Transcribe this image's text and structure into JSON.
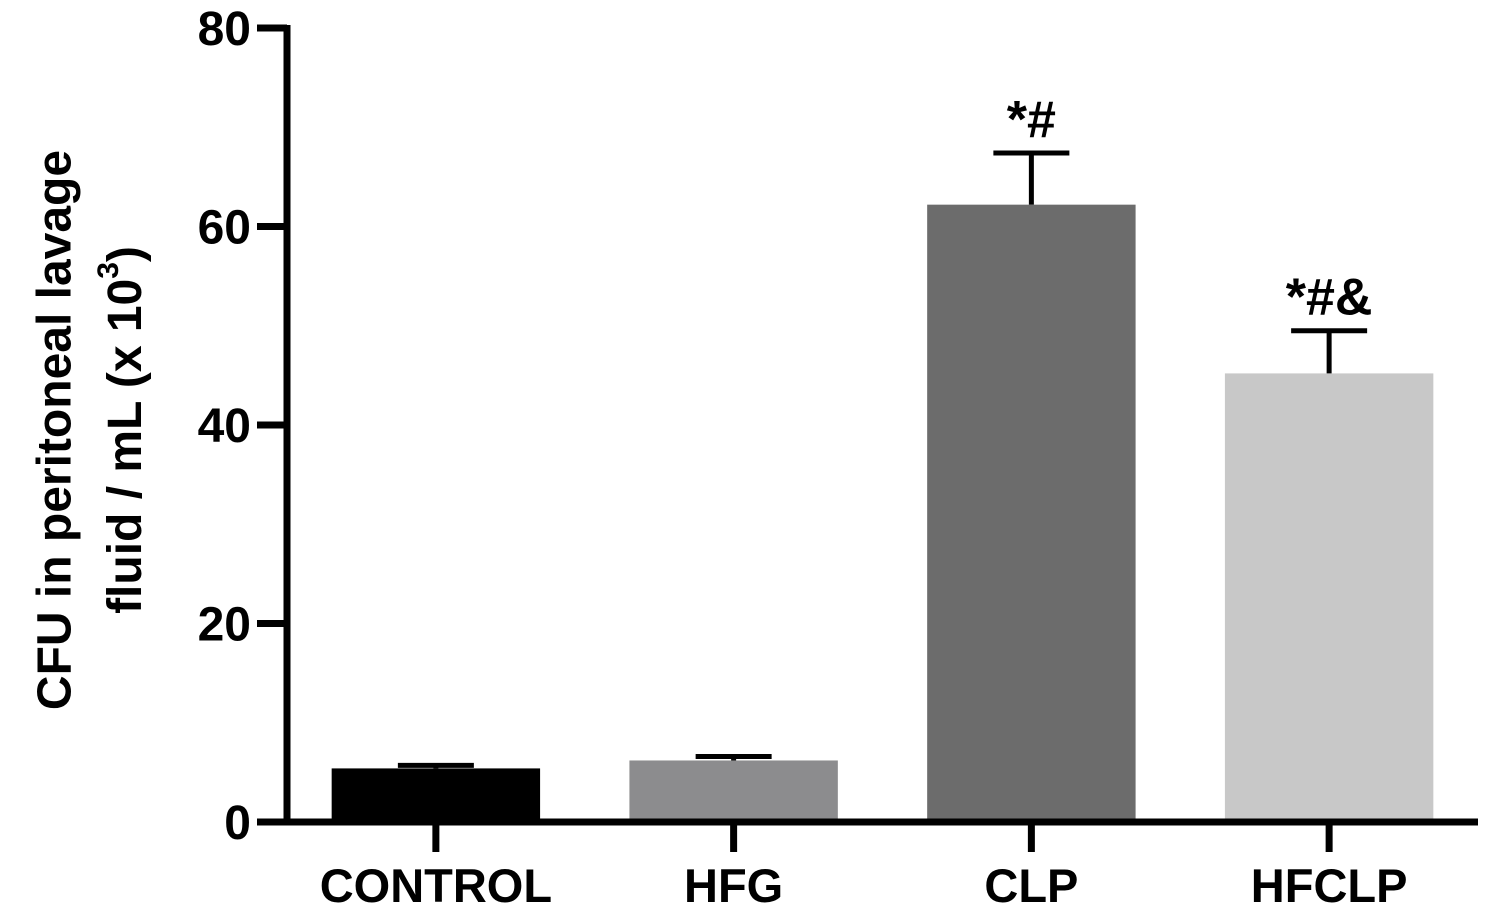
{
  "chart_data": {
    "type": "bar",
    "y_label": {
      "line1": "CFU in peritoneal lavage",
      "line2": "fluid / mL (x 10",
      "superscript": "3",
      "line2_end": ")"
    },
    "categories": [
      "CONTROL",
      "HFG",
      "CLP",
      "HFCLP"
    ],
    "values": [
      5.4,
      6.2,
      62.2,
      45.2
    ],
    "errors": [
      0.3,
      0.4,
      5.2,
      4.3
    ],
    "colors": [
      "#000000",
      "#8c8c8e",
      "#6c6c6c",
      "#c8c8c8"
    ],
    "annotations": [
      null,
      null,
      "*#",
      "*#&"
    ],
    "ylim": [
      0,
      80
    ],
    "yticks": [
      0,
      20,
      40,
      60,
      80
    ]
  }
}
